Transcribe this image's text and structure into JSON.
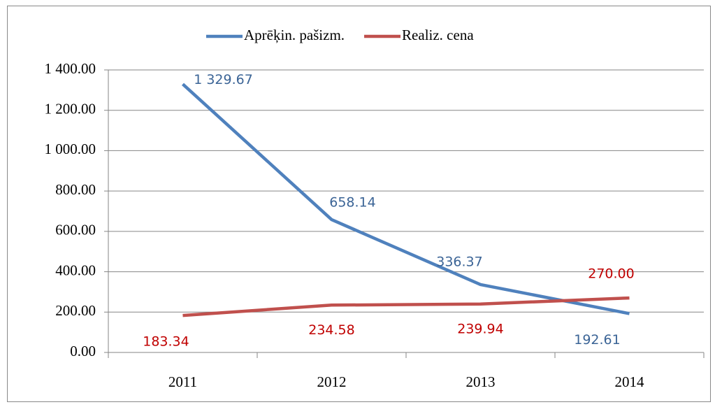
{
  "chart_data": {
    "type": "line",
    "categories": [
      "2011",
      "2012",
      "2013",
      "2014"
    ],
    "series": [
      {
        "name": "Aprēķin. pašizm.",
        "color": "#4f81bd",
        "label_color": "#3b6496",
        "values": [
          1329.67,
          658.14,
          336.37,
          192.61
        ],
        "value_labels": [
          "1 329.67",
          "658.14",
          "336.37",
          "192.61"
        ]
      },
      {
        "name": "Realiz. cena",
        "color": "#c0504d",
        "label_color": "#c00000",
        "values": [
          183.34,
          234.58,
          239.94,
          270
        ],
        "value_labels": [
          "183.34",
          "234.58",
          "239.94",
          "270.00"
        ]
      }
    ],
    "ylim": [
      0,
      1400
    ],
    "yticks": [
      {
        "value": 0,
        "label": "0.00"
      },
      {
        "value": 200,
        "label": "200.00"
      },
      {
        "value": 400,
        "label": "400.00"
      },
      {
        "value": 600,
        "label": "600.00"
      },
      {
        "value": 800,
        "label": "800.00"
      },
      {
        "value": 1000,
        "label": "1 000.00"
      },
      {
        "value": 1200,
        "label": "1 200.00"
      },
      {
        "value": 1400,
        "label": "1 400.00"
      }
    ],
    "grid": true,
    "legend": "top"
  }
}
